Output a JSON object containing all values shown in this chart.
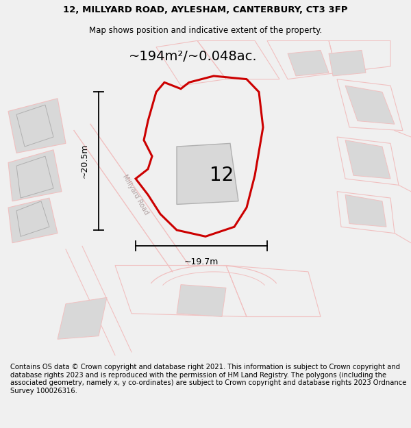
{
  "title_line1": "12, MILLYARD ROAD, AYLESHAM, CANTERBURY, CT3 3FP",
  "title_line2": "Map shows position and indicative extent of the property.",
  "footer_text": "Contains OS data © Crown copyright and database right 2021. This information is subject to Crown copyright and database rights 2023 and is reproduced with the permission of HM Land Registry. The polygons (including the associated geometry, namely x, y co-ordinates) are subject to Crown copyright and database rights 2023 Ordnance Survey 100026316.",
  "area_label": "~194m²/~0.048ac.",
  "width_label": "~19.7m",
  "height_label": "~20.5m",
  "plot_number": "12",
  "road_label": "Millyard Road",
  "bg_color": "#f0f0f0",
  "map_bg": "#f2eeee",
  "light_red": "#f0c0c0",
  "light_red2": "#e8a8a8",
  "gray_fill": "#d8d8d8",
  "gray_edge": "#b0b0b0",
  "title_fontsize": 9.5,
  "subtitle_fontsize": 8.5,
  "footer_fontsize": 7.2,
  "area_fontsize": 14,
  "plot_num_fontsize": 20,
  "meas_fontsize": 9
}
